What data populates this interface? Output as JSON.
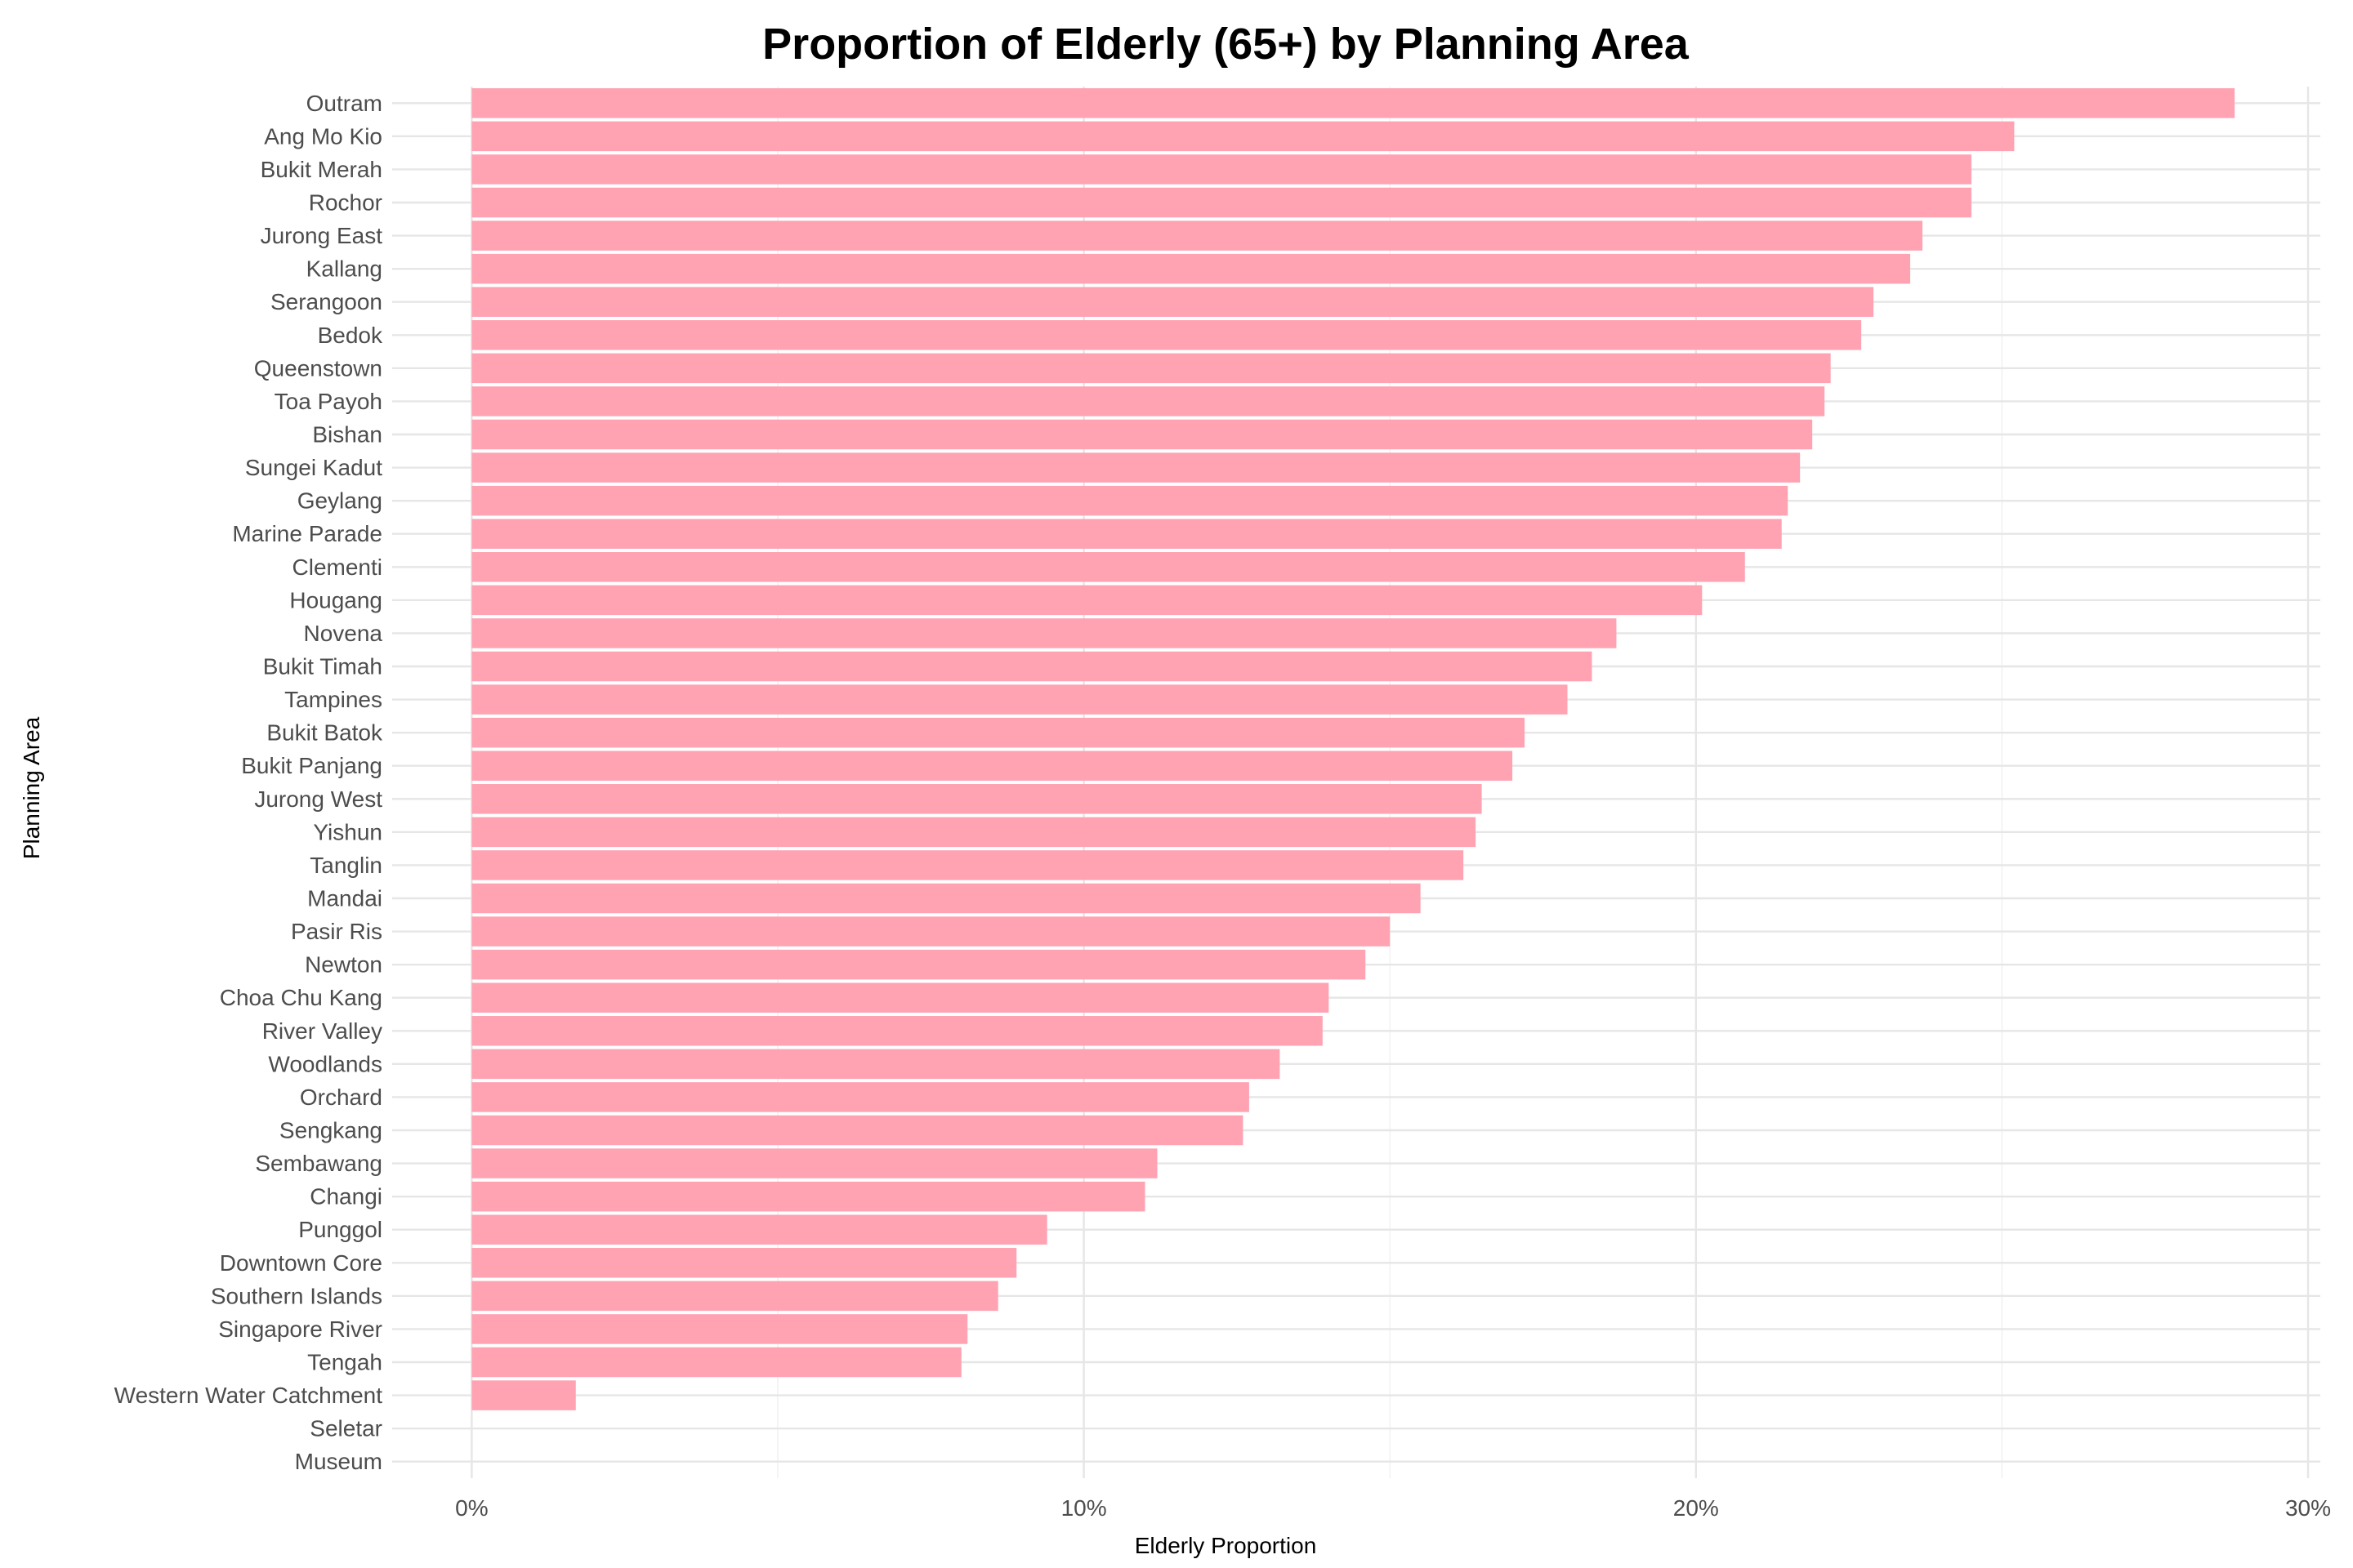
{
  "chart_data": {
    "type": "bar",
    "orientation": "horizontal",
    "title": "Proportion of Elderly (65+) by Planning Area",
    "xlabel": "Elderly Proportion",
    "ylabel": "Planning Area",
    "xlim": [
      -0.013,
      0.302
    ],
    "x_ticks": [
      0,
      0.1,
      0.2,
      0.3
    ],
    "x_tick_labels": [
      "0%",
      "10%",
      "20%",
      "30%"
    ],
    "grid": true,
    "bar_color": "#FFA3B3",
    "categories": [
      "Outram",
      "Ang Mo Kio",
      "Bukit Merah",
      "Rochor",
      "Jurong East",
      "Kallang",
      "Serangoon",
      "Bedok",
      "Queenstown",
      "Toa Payoh",
      "Bishan",
      "Sungei Kadut",
      "Geylang",
      "Marine Parade",
      "Clementi",
      "Hougang",
      "Novena",
      "Bukit Timah",
      "Tampines",
      "Bukit Batok",
      "Bukit Panjang",
      "Jurong West",
      "Yishun",
      "Tanglin",
      "Mandai",
      "Pasir Ris",
      "Newton",
      "Choa Chu Kang",
      "River Valley",
      "Woodlands",
      "Orchard",
      "Sengkang",
      "Sembawang",
      "Changi",
      "Punggol",
      "Downtown Core",
      "Southern Islands",
      "Singapore River",
      "Tengah",
      "Western Water Catchment",
      "Seletar",
      "Museum"
    ],
    "values": [
      0.288,
      0.252,
      0.245,
      0.245,
      0.237,
      0.235,
      0.229,
      0.227,
      0.222,
      0.221,
      0.219,
      0.217,
      0.215,
      0.214,
      0.208,
      0.201,
      0.187,
      0.183,
      0.179,
      0.172,
      0.17,
      0.165,
      0.164,
      0.162,
      0.155,
      0.15,
      0.146,
      0.14,
      0.139,
      0.132,
      0.127,
      0.126,
      0.112,
      0.11,
      0.094,
      0.089,
      0.086,
      0.081,
      0.08,
      0.017,
      0.0,
      0.0
    ]
  }
}
